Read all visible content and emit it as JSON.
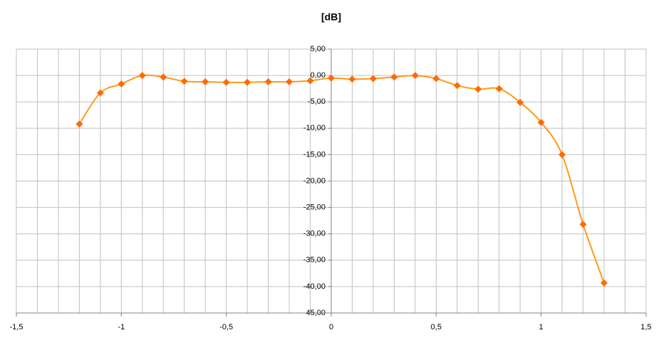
{
  "chart_data": {
    "type": "line",
    "title": "[dB]",
    "x": [
      -1.2,
      -1.1,
      -1.0,
      -0.9,
      -0.8,
      -0.7,
      -0.6,
      -0.5,
      -0.4,
      -0.3,
      -0.2,
      -0.1,
      0,
      0.1,
      0.2,
      0.3,
      0.4,
      0.5,
      0.6,
      0.7,
      0.8,
      0.9,
      1.0,
      1.1,
      1.2,
      1.3
    ],
    "series": [
      {
        "color": "#ff9a1a",
        "marker_color": "#ff6a00",
        "values": [
          -9.2,
          -3.3,
          -1.6,
          0.0,
          -0.3,
          -1.1,
          -1.2,
          -1.3,
          -1.3,
          -1.2,
          -1.2,
          -1.0,
          -0.5,
          -0.7,
          -0.6,
          -0.3,
          0.0,
          -0.6,
          -1.9,
          -2.6,
          -2.5,
          -5.1,
          -8.9,
          -15.0,
          -28.2,
          -39.3
        ]
      }
    ],
    "xlim": [
      -1.5,
      1.5
    ],
    "xticks": [
      {
        "value": -1.5,
        "label": "-1,5"
      },
      -1,
      {
        "value": -0.5,
        "label": "-0,5"
      },
      0,
      {
        "value": 0.5,
        "label": "0,5"
      },
      1,
      {
        "value": 1.5,
        "label": "1,5"
      }
    ],
    "xminorticks": [
      -1.4,
      -1.3,
      -1.2,
      -1.1,
      -0.9,
      -0.8,
      -0.7,
      -0.6,
      -0.4,
      -0.3,
      -0.2,
      -0.1,
      0.1,
      0.2,
      0.3,
      0.4,
      0.6,
      0.7,
      0.8,
      0.9,
      1.1,
      1.2,
      1.3,
      1.4
    ],
    "ylim": [
      -45,
      5
    ],
    "yticks": [
      {
        "value": 5,
        "label": "5,00"
      },
      {
        "value": 0,
        "label": "0,00"
      },
      {
        "value": -5,
        "label": "-5,00"
      },
      {
        "value": -10,
        "label": "-10,00"
      },
      {
        "value": -15,
        "label": "-15,00"
      },
      {
        "value": -20,
        "label": "-20,00"
      },
      {
        "value": -25,
        "label": "-25,00"
      },
      {
        "value": -30,
        "label": "-30,00"
      },
      {
        "value": -35,
        "label": "-35,00"
      },
      {
        "value": -40,
        "label": "-40,00"
      },
      {
        "value": -45,
        "label": "-45,00"
      }
    ],
    "grid": true,
    "smooth": true
  }
}
